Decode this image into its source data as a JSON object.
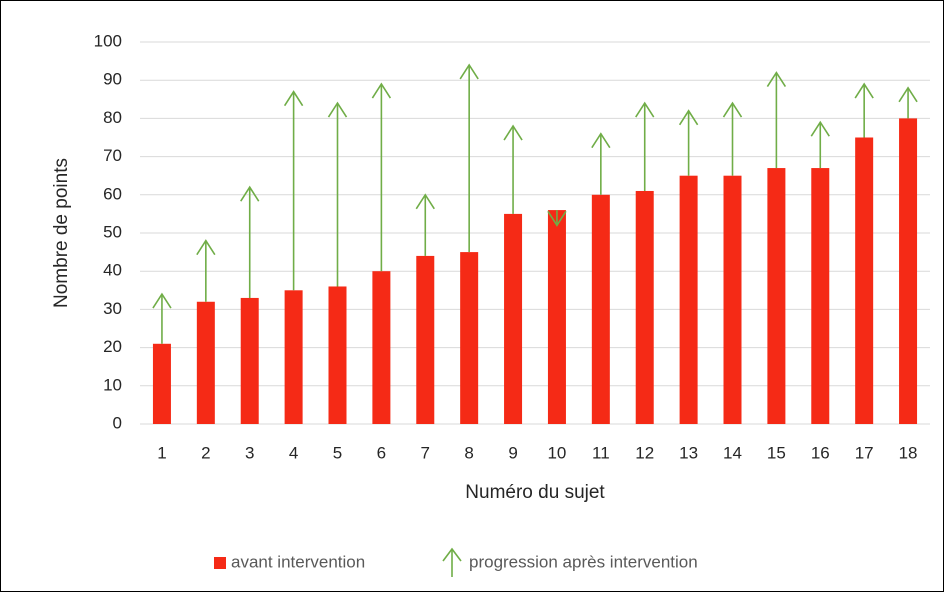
{
  "chart_data": {
    "type": "bar-arrow",
    "x_label": "Numéro du sujet",
    "y_label": "Nombre de points",
    "categories": [
      "1",
      "2",
      "3",
      "4",
      "5",
      "6",
      "7",
      "8",
      "9",
      "10",
      "11",
      "12",
      "13",
      "14",
      "15",
      "16",
      "17",
      "18"
    ],
    "series": [
      {
        "name": "avant intervention",
        "color": "#f52a16",
        "values": [
          21,
          32,
          33,
          35,
          36,
          40,
          44,
          45,
          55,
          56,
          60,
          61,
          65,
          65,
          67,
          67,
          75,
          80
        ]
      },
      {
        "name": "progression après intervention",
        "color": "#70ad47",
        "values": [
          34,
          48,
          62,
          87,
          84,
          89,
          60,
          94,
          78,
          52,
          76,
          84,
          82,
          84,
          92,
          79,
          89,
          88
        ]
      }
    ],
    "ylim": [
      0,
      100
    ],
    "yticks": [
      0,
      10,
      20,
      30,
      40,
      50,
      60,
      70,
      80,
      90,
      100
    ],
    "grid": true
  }
}
